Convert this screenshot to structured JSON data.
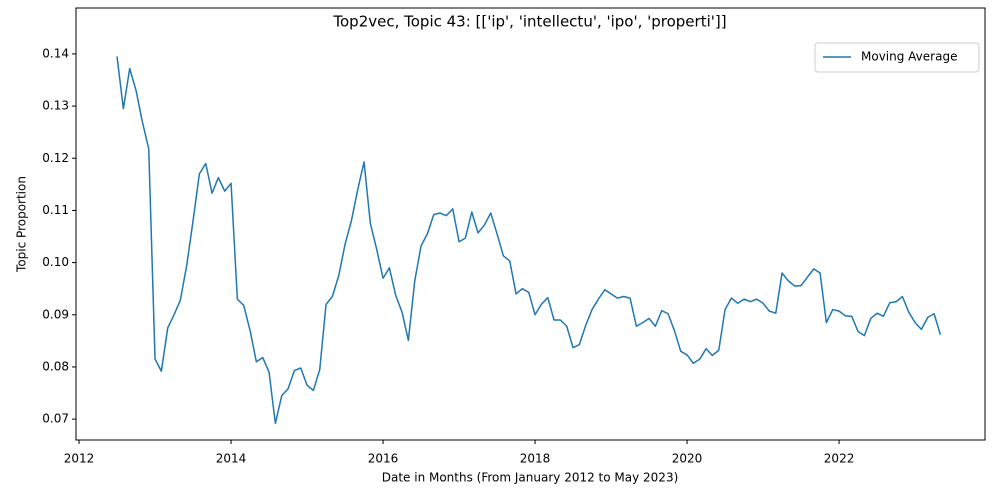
{
  "chart_data": {
    "type": "line",
    "title": "Top2vec, Topic 43: [['ip', 'intellectu', 'ipo', 'properti']]",
    "xlabel": "Date in Months (From January 2012 to May 2023)",
    "ylabel": "Topic Proportion",
    "x": [
      2012.5,
      2012.583,
      2012.667,
      2012.75,
      2012.833,
      2012.917,
      2013,
      2013.083,
      2013.167,
      2013.25,
      2013.333,
      2013.417,
      2013.5,
      2013.583,
      2013.667,
      2013.75,
      2013.833,
      2013.917,
      2014,
      2014.083,
      2014.167,
      2014.25,
      2014.333,
      2014.417,
      2014.5,
      2014.583,
      2014.667,
      2014.75,
      2014.833,
      2014.917,
      2015,
      2015.083,
      2015.167,
      2015.25,
      2015.333,
      2015.417,
      2015.5,
      2015.583,
      2015.667,
      2015.75,
      2015.833,
      2015.917,
      2016,
      2016.083,
      2016.167,
      2016.25,
      2016.333,
      2016.417,
      2016.5,
      2016.583,
      2016.667,
      2016.75,
      2016.833,
      2016.917,
      2017,
      2017.083,
      2017.167,
      2017.25,
      2017.333,
      2017.417,
      2017.5,
      2017.583,
      2017.667,
      2017.75,
      2017.833,
      2017.917,
      2018,
      2018.083,
      2018.167,
      2018.25,
      2018.333,
      2018.417,
      2018.5,
      2018.583,
      2018.667,
      2018.75,
      2018.833,
      2018.917,
      2019,
      2019.083,
      2019.167,
      2019.25,
      2019.333,
      2019.417,
      2019.5,
      2019.583,
      2019.667,
      2019.75,
      2019.833,
      2019.917,
      2020,
      2020.083,
      2020.167,
      2020.25,
      2020.333,
      2020.417,
      2020.5,
      2020.583,
      2020.667,
      2020.75,
      2020.833,
      2020.917,
      2021,
      2021.083,
      2021.167,
      2021.25,
      2021.333,
      2021.417,
      2021.5,
      2021.583,
      2021.667,
      2021.75,
      2021.833,
      2021.917,
      2022,
      2022.083,
      2022.167,
      2022.25,
      2022.333,
      2022.417,
      2022.5,
      2022.583,
      2022.667,
      2022.75,
      2022.833,
      2022.917,
      2023,
      2023.083,
      2023.167,
      2023.25,
      2023.333
    ],
    "series": [
      {
        "name": "Moving Average",
        "color": "#1f77b4",
        "values": [
          0.1395,
          0.1295,
          0.1372,
          0.133,
          0.127,
          0.1218,
          0.0815,
          0.0792,
          0.0875,
          0.09,
          0.0928,
          0.0995,
          0.108,
          0.117,
          0.119,
          0.1133,
          0.1163,
          0.1137,
          0.1152,
          0.093,
          0.0918,
          0.087,
          0.081,
          0.0818,
          0.079,
          0.0692,
          0.0745,
          0.0758,
          0.0793,
          0.0798,
          0.0765,
          0.0755,
          0.0795,
          0.092,
          0.0935,
          0.0975,
          0.1035,
          0.108,
          0.114,
          0.1193,
          0.1075,
          0.1025,
          0.097,
          0.099,
          0.0937,
          0.0905,
          0.0851,
          0.0965,
          0.1032,
          0.1055,
          0.1092,
          0.1095,
          0.109,
          0.1103,
          0.104,
          0.1047,
          0.1097,
          0.1057,
          0.1072,
          0.1095,
          0.1055,
          0.1013,
          0.1003,
          0.094,
          0.095,
          0.0943,
          0.09,
          0.092,
          0.0933,
          0.089,
          0.089,
          0.0878,
          0.0837,
          0.0843,
          0.088,
          0.091,
          0.093,
          0.0948,
          0.094,
          0.0932,
          0.0935,
          0.0932,
          0.0878,
          0.0885,
          0.0893,
          0.0878,
          0.0908,
          0.0902,
          0.087,
          0.083,
          0.0823,
          0.0807,
          0.0815,
          0.0835,
          0.0822,
          0.0832,
          0.091,
          0.0932,
          0.0922,
          0.093,
          0.0925,
          0.093,
          0.0922,
          0.0907,
          0.0903,
          0.098,
          0.0965,
          0.0955,
          0.0956,
          0.0972,
          0.0988,
          0.098,
          0.0885,
          0.091,
          0.0907,
          0.0898,
          0.0897,
          0.0868,
          0.086,
          0.0893,
          0.0903,
          0.0897,
          0.0923,
          0.0925,
          0.0935,
          0.0905,
          0.0885,
          0.0872,
          0.0895,
          0.0902,
          0.0862
        ]
      }
    ],
    "xlim": [
      2011.96,
      2023.92
    ],
    "xticks": [
      2012,
      2014,
      2016,
      2018,
      2020,
      2022
    ],
    "ylim": [
      0.066,
      0.1488
    ],
    "yticks": [
      0.07,
      0.08,
      0.09,
      {
        "value": 0.1,
        "label": "0.10"
      },
      0.11,
      0.12,
      0.13,
      0.14
    ],
    "legend": "upper right"
  }
}
